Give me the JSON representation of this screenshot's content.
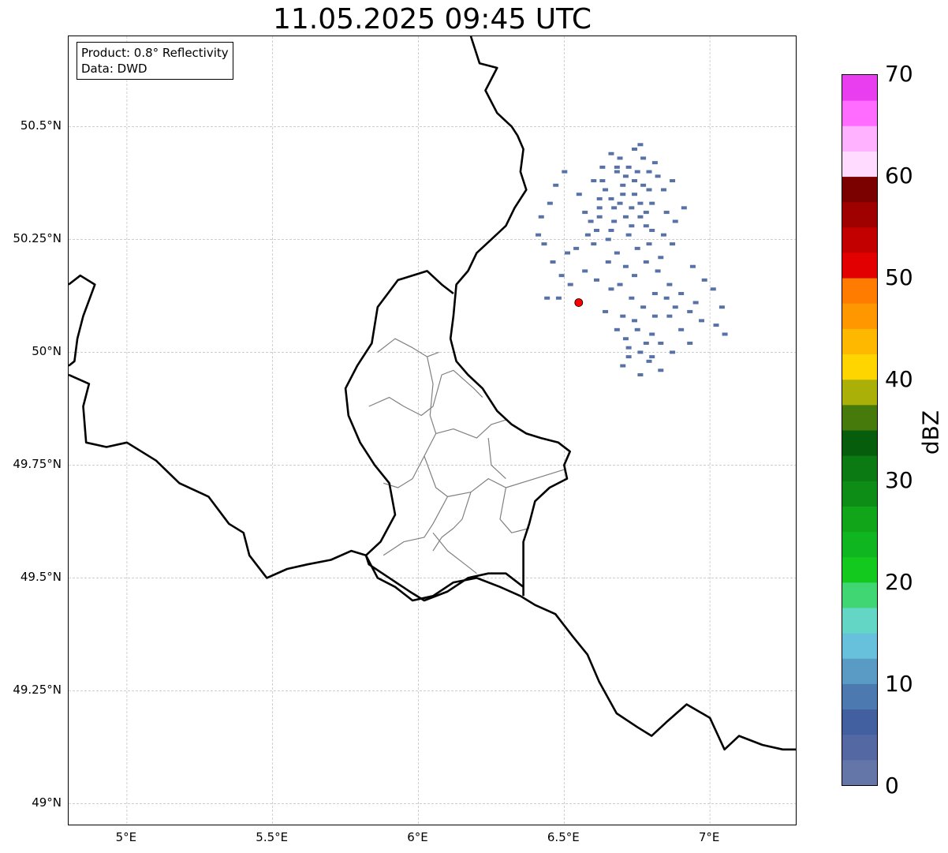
{
  "title": "11.05.2025 09:45 UTC",
  "info": {
    "product": "Product: 0.8° Reflectivity",
    "data": "Data: DWD"
  },
  "map": {
    "extent": {
      "lon_min": 4.8,
      "lon_max": 7.3,
      "lat_min": 48.95,
      "lat_max": 50.7
    },
    "lat_ticks": [
      {
        "value": 50.5,
        "label": "50.5°N"
      },
      {
        "value": 50.25,
        "label": "50.25°N"
      },
      {
        "value": 50.0,
        "label": "50°N"
      },
      {
        "value": 49.75,
        "label": "49.75°N"
      },
      {
        "value": 49.5,
        "label": "49.5°N"
      },
      {
        "value": 49.25,
        "label": "49.25°N"
      },
      {
        "value": 49.0,
        "label": "49°N"
      }
    ],
    "lon_ticks": [
      {
        "value": 5.0,
        "label": "5°E"
      },
      {
        "value": 5.5,
        "label": "5.5°E"
      },
      {
        "value": 6.0,
        "label": "6°E"
      },
      {
        "value": 6.5,
        "label": "6.5°E"
      },
      {
        "value": 7.0,
        "label": "7°E"
      }
    ],
    "gridlines": true,
    "radar_site": {
      "lon": 6.55,
      "lat": 50.11,
      "color": "#ff0000"
    },
    "echo_color": "#5872a8",
    "echoes": [
      [
        6.66,
        50.44
      ],
      [
        6.68,
        50.41
      ],
      [
        6.71,
        50.39
      ],
      [
        6.74,
        50.38
      ],
      [
        6.77,
        50.37
      ],
      [
        6.79,
        50.4
      ],
      [
        6.81,
        50.42
      ],
      [
        6.64,
        50.36
      ],
      [
        6.7,
        50.35
      ],
      [
        6.73,
        50.32
      ],
      [
        6.76,
        50.3
      ],
      [
        6.78,
        50.28
      ],
      [
        6.8,
        50.33
      ],
      [
        6.85,
        50.31
      ],
      [
        6.62,
        50.3
      ],
      [
        6.66,
        50.27
      ],
      [
        6.72,
        50.26
      ],
      [
        6.75,
        50.23
      ],
      [
        6.79,
        50.24
      ],
      [
        6.83,
        50.21
      ],
      [
        6.88,
        50.29
      ],
      [
        6.68,
        50.22
      ],
      [
        6.71,
        50.19
      ],
      [
        6.74,
        50.17
      ],
      [
        6.78,
        50.2
      ],
      [
        6.82,
        50.18
      ],
      [
        6.86,
        50.15
      ],
      [
        6.9,
        50.13
      ],
      [
        6.6,
        50.24
      ],
      [
        6.65,
        50.2
      ],
      [
        6.69,
        50.15
      ],
      [
        6.73,
        50.12
      ],
      [
        6.77,
        50.1
      ],
      [
        6.81,
        50.08
      ],
      [
        6.85,
        50.12
      ],
      [
        6.75,
        50.05
      ],
      [
        6.78,
        50.02
      ],
      [
        6.72,
        49.99
      ],
      [
        6.79,
        49.98
      ],
      [
        6.83,
        49.96
      ],
      [
        6.76,
        49.95
      ],
      [
        6.7,
        49.97
      ],
      [
        6.88,
        50.1
      ],
      [
        6.93,
        50.09
      ],
      [
        6.97,
        50.07
      ],
      [
        7.02,
        50.06
      ],
      [
        7.05,
        50.04
      ],
      [
        6.95,
        50.11
      ],
      [
        6.62,
        50.34
      ],
      [
        6.74,
        50.45
      ],
      [
        6.77,
        50.43
      ],
      [
        6.69,
        50.33
      ],
      [
        6.73,
        50.28
      ],
      [
        6.67,
        50.29
      ],
      [
        6.84,
        50.36
      ],
      [
        6.87,
        50.38
      ],
      [
        6.63,
        50.38
      ],
      [
        6.58,
        50.26
      ],
      [
        6.54,
        50.23
      ],
      [
        6.51,
        50.22
      ],
      [
        6.49,
        50.17
      ],
      [
        6.48,
        50.12
      ],
      [
        6.44,
        50.12
      ],
      [
        6.52,
        50.15
      ],
      [
        6.57,
        50.18
      ],
      [
        6.61,
        50.16
      ],
      [
        6.66,
        50.14
      ],
      [
        6.7,
        50.08
      ],
      [
        6.74,
        50.07
      ],
      [
        6.8,
        50.04
      ],
      [
        6.64,
        50.09
      ],
      [
        6.68,
        50.05
      ],
      [
        6.71,
        50.03
      ],
      [
        6.76,
        50.0
      ],
      [
        6.72,
        50.01
      ],
      [
        6.81,
        50.13
      ],
      [
        6.86,
        50.08
      ],
      [
        6.9,
        50.05
      ],
      [
        6.93,
        50.02
      ],
      [
        6.83,
        50.02
      ],
      [
        6.8,
        49.99
      ],
      [
        6.87,
        50.0
      ],
      [
        6.68,
        50.4
      ],
      [
        6.72,
        50.41
      ],
      [
        6.75,
        50.4
      ],
      [
        6.79,
        50.36
      ],
      [
        6.82,
        50.39
      ],
      [
        6.76,
        50.33
      ],
      [
        6.71,
        50.3
      ],
      [
        6.67,
        50.32
      ],
      [
        6.65,
        50.25
      ],
      [
        6.61,
        50.27
      ],
      [
        6.57,
        50.31
      ],
      [
        6.55,
        50.35
      ],
      [
        6.6,
        50.38
      ],
      [
        6.63,
        50.41
      ],
      [
        6.69,
        50.43
      ],
      [
        6.76,
        50.46
      ],
      [
        6.74,
        50.35
      ],
      [
        6.7,
        50.37
      ],
      [
        6.66,
        50.34
      ],
      [
        6.62,
        50.32
      ],
      [
        6.59,
        50.29
      ],
      [
        6.78,
        50.31
      ],
      [
        6.8,
        50.27
      ],
      [
        6.84,
        50.26
      ],
      [
        6.87,
        50.24
      ],
      [
        6.91,
        50.32
      ],
      [
        6.94,
        50.19
      ],
      [
        6.98,
        50.16
      ],
      [
        7.01,
        50.14
      ],
      [
        7.04,
        50.1
      ],
      [
        6.46,
        50.2
      ],
      [
        6.43,
        50.24
      ],
      [
        6.41,
        50.26
      ],
      [
        6.42,
        50.3
      ],
      [
        6.45,
        50.33
      ],
      [
        6.47,
        50.37
      ],
      [
        6.5,
        50.4
      ]
    ]
  },
  "borders": {
    "national": [
      [
        [
          4.8,
          50.15
        ],
        [
          4.84,
          50.17
        ],
        [
          4.89,
          50.15
        ],
        [
          4.85,
          50.08
        ],
        [
          4.83,
          50.03
        ],
        [
          4.82,
          49.98
        ],
        [
          4.8,
          49.97
        ]
      ],
      [
        [
          4.8,
          49.95
        ],
        [
          4.87,
          49.93
        ],
        [
          4.85,
          49.88
        ],
        [
          4.86,
          49.8
        ],
        [
          4.93,
          49.79
        ],
        [
          5.0,
          49.8
        ],
        [
          5.1,
          49.76
        ],
        [
          5.18,
          49.71
        ],
        [
          5.28,
          49.68
        ],
        [
          5.35,
          49.62
        ],
        [
          5.4,
          49.6
        ],
        [
          5.42,
          49.55
        ],
        [
          5.48,
          49.5
        ],
        [
          5.55,
          49.52
        ],
        [
          5.62,
          49.53
        ],
        [
          5.7,
          49.54
        ],
        [
          5.77,
          49.56
        ],
        [
          5.82,
          49.55
        ],
        [
          5.86,
          49.5
        ],
        [
          5.92,
          49.48
        ],
        [
          5.98,
          49.45
        ],
        [
          6.05,
          49.46
        ],
        [
          6.12,
          49.49
        ],
        [
          6.2,
          49.5
        ],
        [
          6.28,
          49.48
        ],
        [
          6.35,
          49.46
        ],
        [
          6.4,
          49.44
        ],
        [
          6.47,
          49.42
        ],
        [
          6.53,
          49.37
        ],
        [
          6.58,
          49.33
        ],
        [
          6.62,
          49.27
        ],
        [
          6.68,
          49.2
        ],
        [
          6.75,
          49.17
        ],
        [
          6.8,
          49.15
        ],
        [
          6.85,
          49.18
        ],
        [
          6.92,
          49.22
        ],
        [
          7.0,
          49.19
        ],
        [
          7.05,
          49.12
        ],
        [
          7.1,
          49.15
        ],
        [
          7.18,
          49.13
        ],
        [
          7.25,
          49.12
        ],
        [
          7.3,
          49.12
        ]
      ],
      [
        [
          6.18,
          50.7
        ],
        [
          6.21,
          50.64
        ],
        [
          6.27,
          50.63
        ],
        [
          6.23,
          50.58
        ],
        [
          6.27,
          50.53
        ],
        [
          6.32,
          50.5
        ],
        [
          6.34,
          50.48
        ],
        [
          6.36,
          50.45
        ],
        [
          6.35,
          50.4
        ],
        [
          6.37,
          50.36
        ],
        [
          6.33,
          50.32
        ],
        [
          6.3,
          50.28
        ],
        [
          6.25,
          50.25
        ],
        [
          6.2,
          50.22
        ],
        [
          6.17,
          50.18
        ],
        [
          6.13,
          50.15
        ],
        [
          6.12,
          50.08
        ],
        [
          6.11,
          50.03
        ],
        [
          6.13,
          49.98
        ],
        [
          6.17,
          49.95
        ],
        [
          6.22,
          49.92
        ],
        [
          6.27,
          49.87
        ],
        [
          6.32,
          49.84
        ],
        [
          6.37,
          49.82
        ],
        [
          6.42,
          49.81
        ],
        [
          6.48,
          49.8
        ],
        [
          6.52,
          49.78
        ],
        [
          6.5,
          49.75
        ],
        [
          6.51,
          49.72
        ],
        [
          6.45,
          49.7
        ],
        [
          6.4,
          49.67
        ],
        [
          6.38,
          49.62
        ],
        [
          6.36,
          49.58
        ],
        [
          6.36,
          49.53
        ],
        [
          6.36,
          49.46
        ]
      ],
      [
        [
          6.36,
          49.48
        ],
        [
          6.3,
          49.51
        ],
        [
          6.24,
          49.51
        ],
        [
          6.17,
          49.5
        ],
        [
          6.1,
          49.47
        ],
        [
          6.02,
          49.45
        ],
        [
          5.97,
          49.47
        ],
        [
          5.9,
          49.5
        ],
        [
          5.83,
          49.53
        ],
        [
          5.82,
          49.55
        ],
        [
          5.87,
          49.58
        ],
        [
          5.92,
          49.64
        ],
        [
          5.9,
          49.71
        ],
        [
          5.85,
          49.75
        ],
        [
          5.8,
          49.8
        ],
        [
          5.76,
          49.86
        ],
        [
          5.75,
          49.92
        ],
        [
          5.79,
          49.97
        ],
        [
          5.84,
          50.02
        ],
        [
          5.86,
          50.1
        ],
        [
          5.93,
          50.16
        ],
        [
          6.03,
          50.18
        ],
        [
          6.08,
          50.15
        ],
        [
          6.12,
          50.13
        ]
      ]
    ],
    "regional": [
      [
        [
          5.86,
          50.0
        ],
        [
          5.92,
          50.03
        ],
        [
          5.98,
          50.01
        ],
        [
          6.03,
          49.99
        ],
        [
          6.07,
          50.0
        ]
      ],
      [
        [
          5.83,
          49.88
        ],
        [
          5.9,
          49.9
        ],
        [
          5.95,
          49.88
        ],
        [
          6.01,
          49.86
        ],
        [
          6.05,
          49.88
        ],
        [
          6.08,
          49.95
        ],
        [
          6.12,
          49.96
        ],
        [
          6.19,
          49.92
        ],
        [
          6.22,
          49.9
        ]
      ],
      [
        [
          6.03,
          49.99
        ],
        [
          6.05,
          49.93
        ],
        [
          6.04,
          49.86
        ],
        [
          6.06,
          49.82
        ],
        [
          6.12,
          49.83
        ],
        [
          6.2,
          49.81
        ],
        [
          6.25,
          49.84
        ],
        [
          6.3,
          49.85
        ]
      ],
      [
        [
          6.06,
          49.82
        ],
        [
          6.02,
          49.77
        ],
        [
          5.98,
          49.72
        ],
        [
          5.93,
          49.7
        ],
        [
          5.88,
          49.71
        ]
      ],
      [
        [
          6.02,
          49.77
        ],
        [
          6.06,
          49.7
        ],
        [
          6.1,
          49.68
        ],
        [
          6.18,
          49.69
        ],
        [
          6.24,
          49.72
        ],
        [
          6.3,
          49.7
        ],
        [
          6.4,
          49.72
        ],
        [
          6.5,
          49.74
        ]
      ],
      [
        [
          6.24,
          49.81
        ],
        [
          6.25,
          49.75
        ],
        [
          6.3,
          49.72
        ]
      ],
      [
        [
          6.1,
          49.68
        ],
        [
          6.05,
          49.62
        ],
        [
          6.02,
          49.59
        ],
        [
          5.95,
          49.58
        ],
        [
          5.88,
          49.55
        ]
      ],
      [
        [
          6.18,
          49.69
        ],
        [
          6.15,
          49.63
        ],
        [
          6.12,
          49.61
        ],
        [
          6.08,
          49.59
        ],
        [
          6.05,
          49.56
        ]
      ],
      [
        [
          6.3,
          49.7
        ],
        [
          6.28,
          49.63
        ],
        [
          6.32,
          49.6
        ],
        [
          6.38,
          49.61
        ]
      ],
      [
        [
          6.05,
          49.6
        ],
        [
          6.1,
          49.56
        ],
        [
          6.16,
          49.53
        ],
        [
          6.2,
          49.51
        ]
      ]
    ]
  },
  "colorbar": {
    "label": "dBZ",
    "min": 0,
    "max": 70,
    "ticks": [
      "0",
      "10",
      "20",
      "30",
      "40",
      "50",
      "60",
      "70"
    ],
    "colors": [
      "#6475a7",
      "#5468a3",
      "#42609f",
      "#4c79b0",
      "#5a9bc6",
      "#67c0dc",
      "#64d6c5",
      "#3fd673",
      "#14c91d",
      "#10b620",
      "#11a519",
      "#0d8d16",
      "#0b7a12",
      "#065d0c",
      "#467a0a",
      "#aab007",
      "#ffd500",
      "#ffb800",
      "#ff9800",
      "#ff7c00",
      "#e20000",
      "#c20000",
      "#9f0000",
      "#7b0000",
      "#ffdcff",
      "#ffb2ff",
      "#ff6cff",
      "#e93df0"
    ]
  }
}
